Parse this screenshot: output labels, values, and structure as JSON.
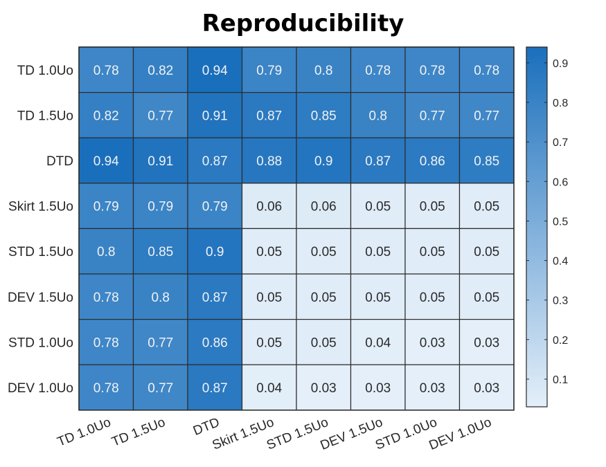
{
  "chart_data": {
    "type": "heatmap",
    "title": "Reproducibility",
    "xlabel": "",
    "ylabel": "",
    "x_categories": [
      "TD 1.0Uo",
      "TD 1.5Uo",
      "DTD",
      "Skirt 1.5Uo",
      "STD 1.5Uo",
      "DEV 1.5Uo",
      "STD 1.0Uo",
      "DEV 1.0Uo"
    ],
    "y_categories": [
      "TD 1.0Uo",
      "TD 1.5Uo",
      "DTD",
      "Skirt 1.5Uo",
      "STD 1.5Uo",
      "DEV 1.5Uo",
      "STD 1.0Uo",
      "DEV 1.0Uo"
    ],
    "values": [
      [
        0.78,
        0.82,
        0.94,
        0.79,
        0.8,
        0.78,
        0.78,
        0.78
      ],
      [
        0.82,
        0.77,
        0.91,
        0.87,
        0.85,
        0.8,
        0.77,
        0.77
      ],
      [
        0.94,
        0.91,
        0.87,
        0.88,
        0.9,
        0.87,
        0.86,
        0.85
      ],
      [
        0.79,
        0.79,
        0.79,
        0.06,
        0.06,
        0.05,
        0.05,
        0.05
      ],
      [
        0.8,
        0.85,
        0.9,
        0.05,
        0.05,
        0.05,
        0.05,
        0.05
      ],
      [
        0.78,
        0.8,
        0.87,
        0.05,
        0.05,
        0.05,
        0.05,
        0.05
      ],
      [
        0.78,
        0.77,
        0.86,
        0.05,
        0.05,
        0.04,
        0.03,
        0.03
      ],
      [
        0.78,
        0.77,
        0.87,
        0.04,
        0.03,
        0.03,
        0.03,
        0.03
      ]
    ],
    "colorbar": {
      "range": [
        0.03,
        0.94
      ],
      "ticks": [
        0.1,
        0.2,
        0.3,
        0.4,
        0.5,
        0.6,
        0.7,
        0.8,
        0.9
      ],
      "tick_labels": [
        "0.1",
        "0.2",
        "0.3",
        "0.4",
        "0.5",
        "0.6",
        "0.7",
        "0.8",
        "0.9"
      ],
      "color_low": "#e4eff9",
      "color_high": "#1a6fbc"
    },
    "grid": true,
    "colorbar_placement": "right"
  }
}
